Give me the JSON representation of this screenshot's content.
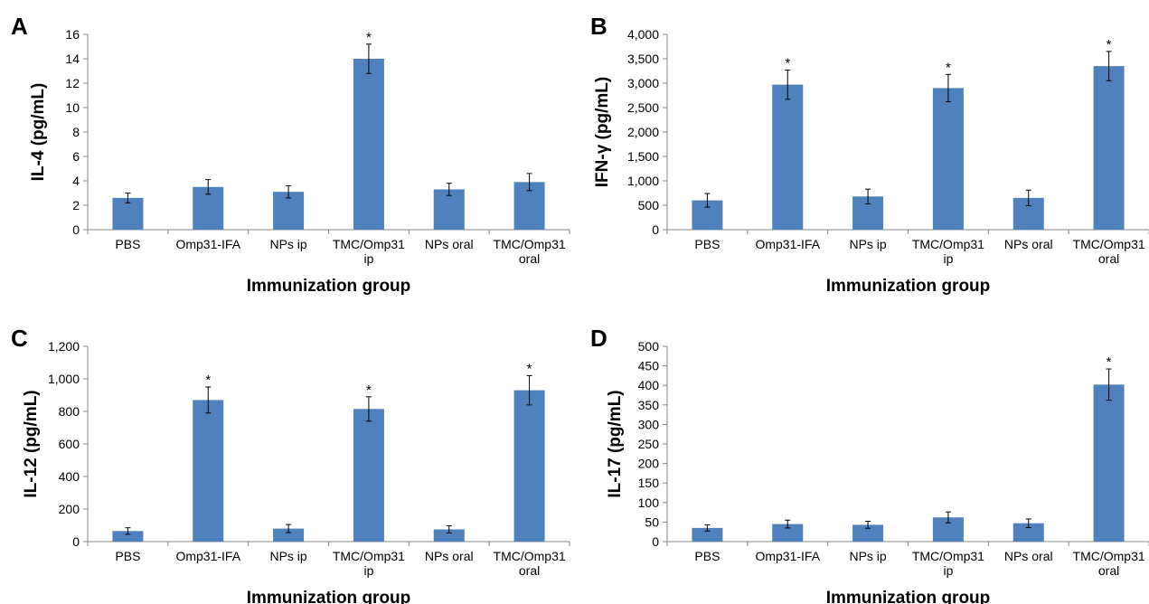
{
  "bar_color": "#4F81BD",
  "chart_data": [
    {
      "panel": "A",
      "type": "bar",
      "xlabel": "Immunization group",
      "ylabel": "IL-4 (pg/mL)",
      "ylim": [
        0,
        16
      ],
      "y_ticks": [
        "0",
        "2",
        "4",
        "6",
        "8",
        "10",
        "12",
        "14",
        "16"
      ],
      "tick_values": [
        0,
        2,
        4,
        6,
        8,
        10,
        12,
        14,
        16
      ],
      "categories": [
        [
          "PBS"
        ],
        [
          "Omp31-IFA"
        ],
        [
          "NPs ip"
        ],
        [
          "TMC/Omp31",
          "ip"
        ],
        [
          "NPs oral"
        ],
        [
          "TMC/Omp31",
          "oral"
        ]
      ],
      "values": [
        2.6,
        3.5,
        3.1,
        14.0,
        3.3,
        3.9
      ],
      "errors": [
        0.4,
        0.6,
        0.5,
        1.2,
        0.5,
        0.7
      ],
      "significance": [
        "",
        "",
        "",
        "*",
        "",
        ""
      ]
    },
    {
      "panel": "B",
      "type": "bar",
      "xlabel": "Immunization group",
      "ylabel": "IFN-γ (pg/mL)",
      "ylim": [
        0,
        4000
      ],
      "y_ticks": [
        "0",
        "500",
        "1,000",
        "1,500",
        "2,000",
        "2,500",
        "3,000",
        "3,500",
        "4,000"
      ],
      "tick_values": [
        0,
        500,
        1000,
        1500,
        2000,
        2500,
        3000,
        3500,
        4000
      ],
      "categories": [
        [
          "PBS"
        ],
        [
          "Omp31-IFA"
        ],
        [
          "NPs ip"
        ],
        [
          "TMC/Omp31",
          "ip"
        ],
        [
          "NPs oral"
        ],
        [
          "TMC/Omp31",
          "oral"
        ]
      ],
      "values": [
        600,
        2970,
        680,
        2900,
        650,
        3350
      ],
      "errors": [
        140,
        300,
        150,
        280,
        160,
        300
      ],
      "significance": [
        "",
        "*",
        "",
        "*",
        "",
        "*"
      ]
    },
    {
      "panel": "C",
      "type": "bar",
      "xlabel": "Immunization group",
      "ylabel": "IL-12 (pg/mL)",
      "ylim": [
        0,
        1200
      ],
      "y_ticks": [
        "0",
        "200",
        "400",
        "600",
        "800",
        "1,000",
        "1,200"
      ],
      "tick_values": [
        0,
        200,
        400,
        600,
        800,
        1000,
        1200
      ],
      "categories": [
        [
          "PBS"
        ],
        [
          "Omp31-IFA"
        ],
        [
          "NPs ip"
        ],
        [
          "TMC/Omp31",
          "ip"
        ],
        [
          "NPs oral"
        ],
        [
          "TMC/Omp31",
          "oral"
        ]
      ],
      "values": [
        65,
        870,
        80,
        815,
        75,
        930
      ],
      "errors": [
        20,
        80,
        25,
        75,
        22,
        90
      ],
      "significance": [
        "",
        "*",
        "",
        "*",
        "",
        "*"
      ]
    },
    {
      "panel": "D",
      "type": "bar",
      "xlabel": "Immunization group",
      "ylabel": "IL-17 (pg/mL)",
      "ylim": [
        0,
        500
      ],
      "y_ticks": [
        "0",
        "50",
        "100",
        "150",
        "200",
        "250",
        "300",
        "350",
        "400",
        "450",
        "500"
      ],
      "tick_values": [
        0,
        50,
        100,
        150,
        200,
        250,
        300,
        350,
        400,
        450,
        500
      ],
      "categories": [
        [
          "PBS"
        ],
        [
          "Omp31-IFA"
        ],
        [
          "NPs ip"
        ],
        [
          "TMC/Omp31",
          "ip"
        ],
        [
          "NPs oral"
        ],
        [
          "TMC/Omp31",
          "oral"
        ]
      ],
      "values": [
        35,
        45,
        43,
        62,
        47,
        402
      ],
      "errors": [
        8,
        10,
        9,
        14,
        11,
        40
      ],
      "significance": [
        "",
        "",
        "",
        "",
        "",
        "*"
      ]
    }
  ]
}
